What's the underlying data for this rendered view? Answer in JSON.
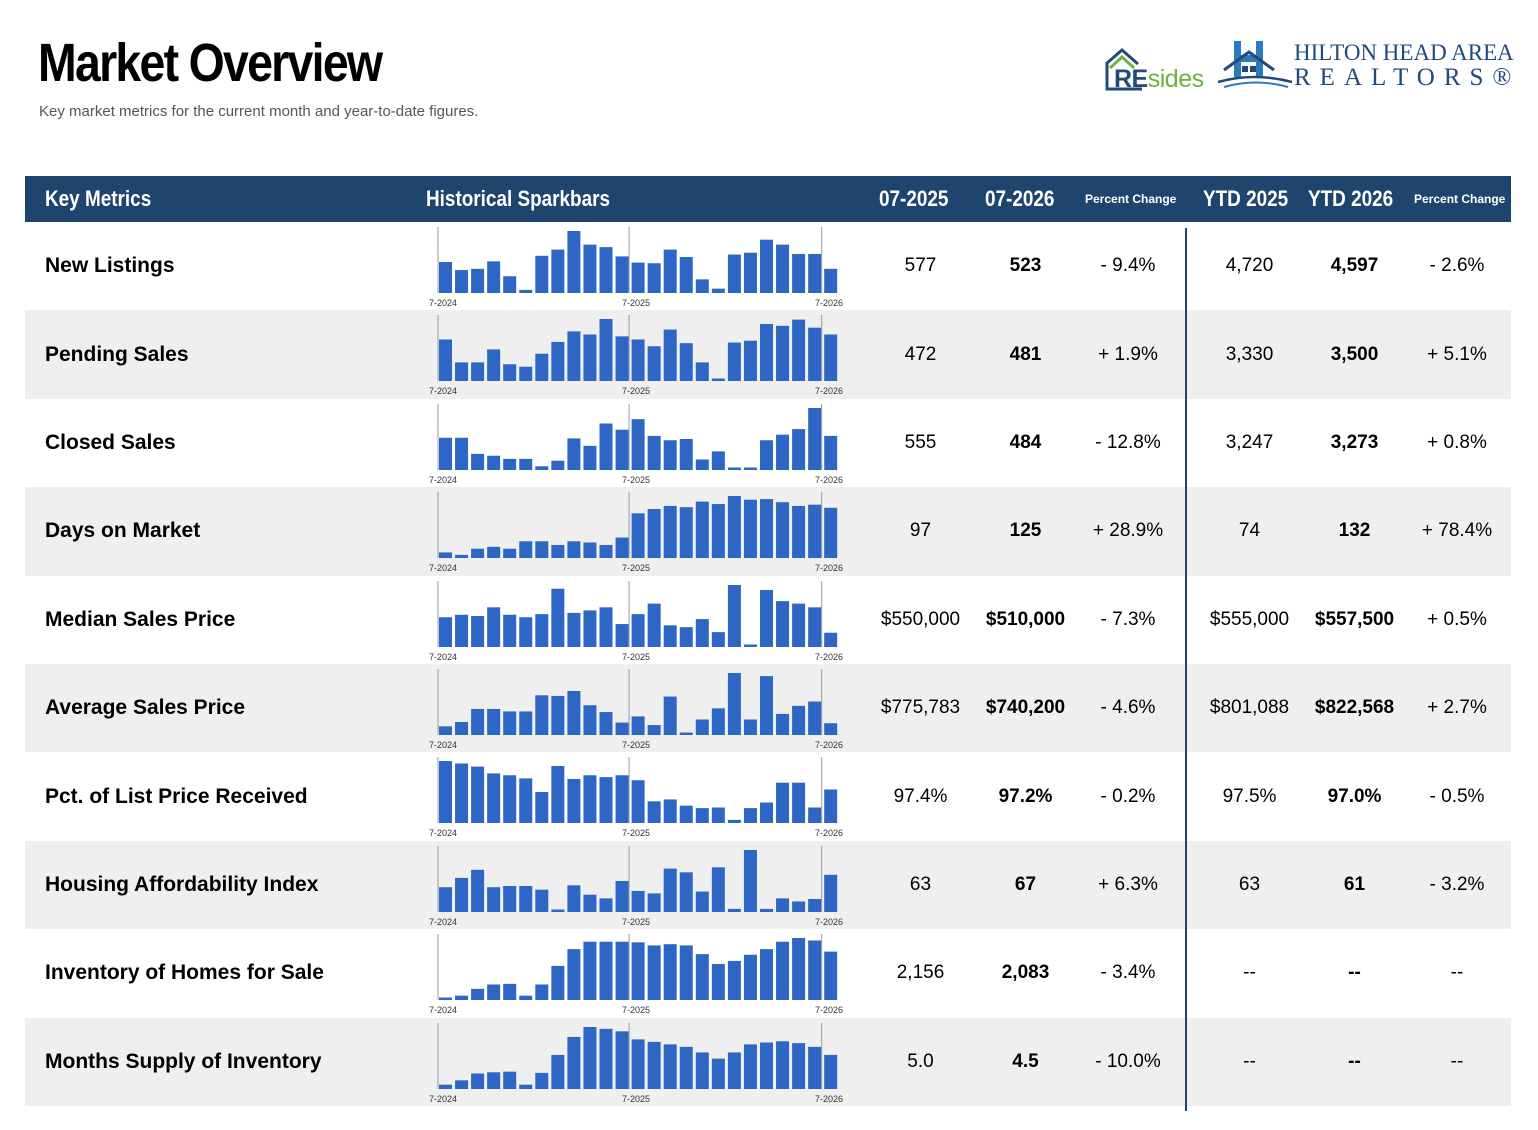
{
  "header": {
    "title": "Market Overview",
    "subtitle": "Key market metrics for the current month and year-to-date figures."
  },
  "logos": {
    "residences": {
      "re": "RE",
      "sides": "sides"
    },
    "hhar": {
      "line1": "HILTON HEAD AREA",
      "line2": "REALTORS®"
    }
  },
  "colors": {
    "header_bg": "#1f456e",
    "bar": "#2d66c4",
    "alt_row": "#efefef",
    "logo_green": "#6cb33f"
  },
  "columns": {
    "key_metrics": "Key Metrics",
    "sparkbars": "Historical Sparkbars",
    "m1": "07-2025",
    "m2": "07-2026",
    "pct1": "Percent Change",
    "ytd1": "YTD 2025",
    "ytd2": "YTD 2026",
    "pct2": "Percent Change"
  },
  "spark_labels": [
    "7-2024",
    "7-2025",
    "7-2026"
  ],
  "rows": [
    {
      "name": "New Listings",
      "m1": "577",
      "m2": "523",
      "pct1": "- 9.4%",
      "ytd1": "4,720",
      "ytd2": "4,597",
      "pct2": "- 2.6%",
      "bars": [
        0.5,
        0.37,
        0.39,
        0.51,
        0.27,
        0.05,
        0.6,
        0.7,
        1.0,
        0.78,
        0.74,
        0.59,
        0.49,
        0.48,
        0.7,
        0.58,
        0.22,
        0.07,
        0.62,
        0.65,
        0.86,
        0.78,
        0.63,
        0.63,
        0.39
      ]
    },
    {
      "name": "Pending Sales",
      "m1": "472",
      "m2": "481",
      "pct1": "+ 1.9%",
      "ytd1": "3,330",
      "ytd2": "3,500",
      "pct2": "+ 5.1%",
      "bars": [
        0.67,
        0.3,
        0.3,
        0.51,
        0.27,
        0.23,
        0.44,
        0.63,
        0.8,
        0.75,
        1.0,
        0.72,
        0.67,
        0.56,
        0.83,
        0.61,
        0.3,
        0.04,
        0.62,
        0.65,
        0.92,
        0.89,
        0.99,
        0.86,
        0.75
      ]
    },
    {
      "name": "Closed Sales",
      "m1": "555",
      "m2": "484",
      "pct1": "- 12.8%",
      "ytd1": "3,247",
      "ytd2": "3,273",
      "pct2": "+ 0.8%",
      "bars": [
        0.52,
        0.52,
        0.26,
        0.23,
        0.18,
        0.18,
        0.06,
        0.15,
        0.51,
        0.39,
        0.75,
        0.65,
        0.82,
        0.55,
        0.48,
        0.5,
        0.17,
        0.3,
        0.04,
        0.04,
        0.48,
        0.57,
        0.66,
        1.0,
        0.55
      ]
    },
    {
      "name": "Days on Market",
      "m1": "97",
      "m2": "125",
      "pct1": "+ 28.9%",
      "ytd1": "74",
      "ytd2": "132",
      "pct2": "+ 78.4%",
      "bars": [
        0.09,
        0.05,
        0.15,
        0.18,
        0.15,
        0.27,
        0.27,
        0.21,
        0.27,
        0.25,
        0.21,
        0.33,
        0.72,
        0.79,
        0.84,
        0.82,
        0.91,
        0.87,
        1.0,
        0.94,
        0.95,
        0.9,
        0.84,
        0.86,
        0.81
      ]
    },
    {
      "name": "Median Sales Price",
      "m1": "$550,000",
      "m2": "$510,000",
      "pct1": "- 7.3%",
      "ytd1": "$555,000",
      "ytd2": "$557,500",
      "pct2": "+ 0.5%",
      "bars": [
        0.48,
        0.52,
        0.5,
        0.64,
        0.52,
        0.48,
        0.53,
        0.94,
        0.55,
        0.59,
        0.64,
        0.37,
        0.53,
        0.7,
        0.35,
        0.32,
        0.45,
        0.24,
        1.0,
        0.04,
        0.92,
        0.74,
        0.7,
        0.64,
        0.23
      ]
    },
    {
      "name": "Average Sales Price",
      "m1": "$775,783",
      "m2": "$740,200",
      "pct1": "- 4.6%",
      "ytd1": "$801,088",
      "ytd2": "$822,568",
      "pct2": "+ 2.7%",
      "bars": [
        0.14,
        0.21,
        0.42,
        0.42,
        0.38,
        0.38,
        0.64,
        0.63,
        0.71,
        0.48,
        0.37,
        0.2,
        0.3,
        0.16,
        0.62,
        0.04,
        0.25,
        0.43,
        1.0,
        0.25,
        0.95,
        0.34,
        0.47,
        0.54,
        0.19
      ]
    },
    {
      "name": "Pct. of List Price Received",
      "m1": "97.4%",
      "m2": "97.2%",
      "pct1": "- 0.2%",
      "ytd1": "97.5%",
      "ytd2": "97.0%",
      "pct2": "- 0.5%",
      "bars": [
        1.0,
        0.96,
        0.91,
        0.8,
        0.77,
        0.72,
        0.5,
        0.92,
        0.71,
        0.77,
        0.74,
        0.77,
        0.69,
        0.35,
        0.38,
        0.28,
        0.24,
        0.25,
        0.05,
        0.24,
        0.33,
        0.65,
        0.65,
        0.25,
        0.54
      ]
    },
    {
      "name": "Housing Affordability Index",
      "m1": "63",
      "m2": "67",
      "pct1": "+ 6.3%",
      "ytd1": "63",
      "ytd2": "61",
      "pct2": "- 3.2%",
      "bars": [
        0.4,
        0.55,
        0.68,
        0.4,
        0.42,
        0.42,
        0.36,
        0.04,
        0.43,
        0.28,
        0.22,
        0.5,
        0.34,
        0.3,
        0.7,
        0.64,
        0.33,
        0.72,
        0.05,
        1.0,
        0.05,
        0.22,
        0.17,
        0.21,
        0.6
      ]
    },
    {
      "name": "Inventory of Homes for Sale",
      "m1": "2,156",
      "m2": "2,083",
      "pct1": "- 3.4%",
      "ytd1": "--",
      "ytd2": "--",
      "pct2": "--",
      "bars": [
        0.04,
        0.07,
        0.18,
        0.25,
        0.26,
        0.07,
        0.25,
        0.55,
        0.82,
        0.94,
        0.94,
        0.94,
        0.93,
        0.88,
        0.9,
        0.88,
        0.74,
        0.58,
        0.63,
        0.73,
        0.82,
        0.94,
        1.0,
        0.96,
        0.78
      ]
    },
    {
      "name": "Months Supply of Inventory",
      "m1": "5.0",
      "m2": "4.5",
      "pct1": "- 10.0%",
      "ytd1": "--",
      "ytd2": "--",
      "pct2": "--",
      "bars": [
        0.07,
        0.14,
        0.25,
        0.27,
        0.28,
        0.07,
        0.26,
        0.55,
        0.84,
        1.0,
        0.97,
        0.93,
        0.8,
        0.76,
        0.72,
        0.68,
        0.59,
        0.49,
        0.59,
        0.72,
        0.75,
        0.77,
        0.74,
        0.68,
        0.55
      ]
    }
  ]
}
